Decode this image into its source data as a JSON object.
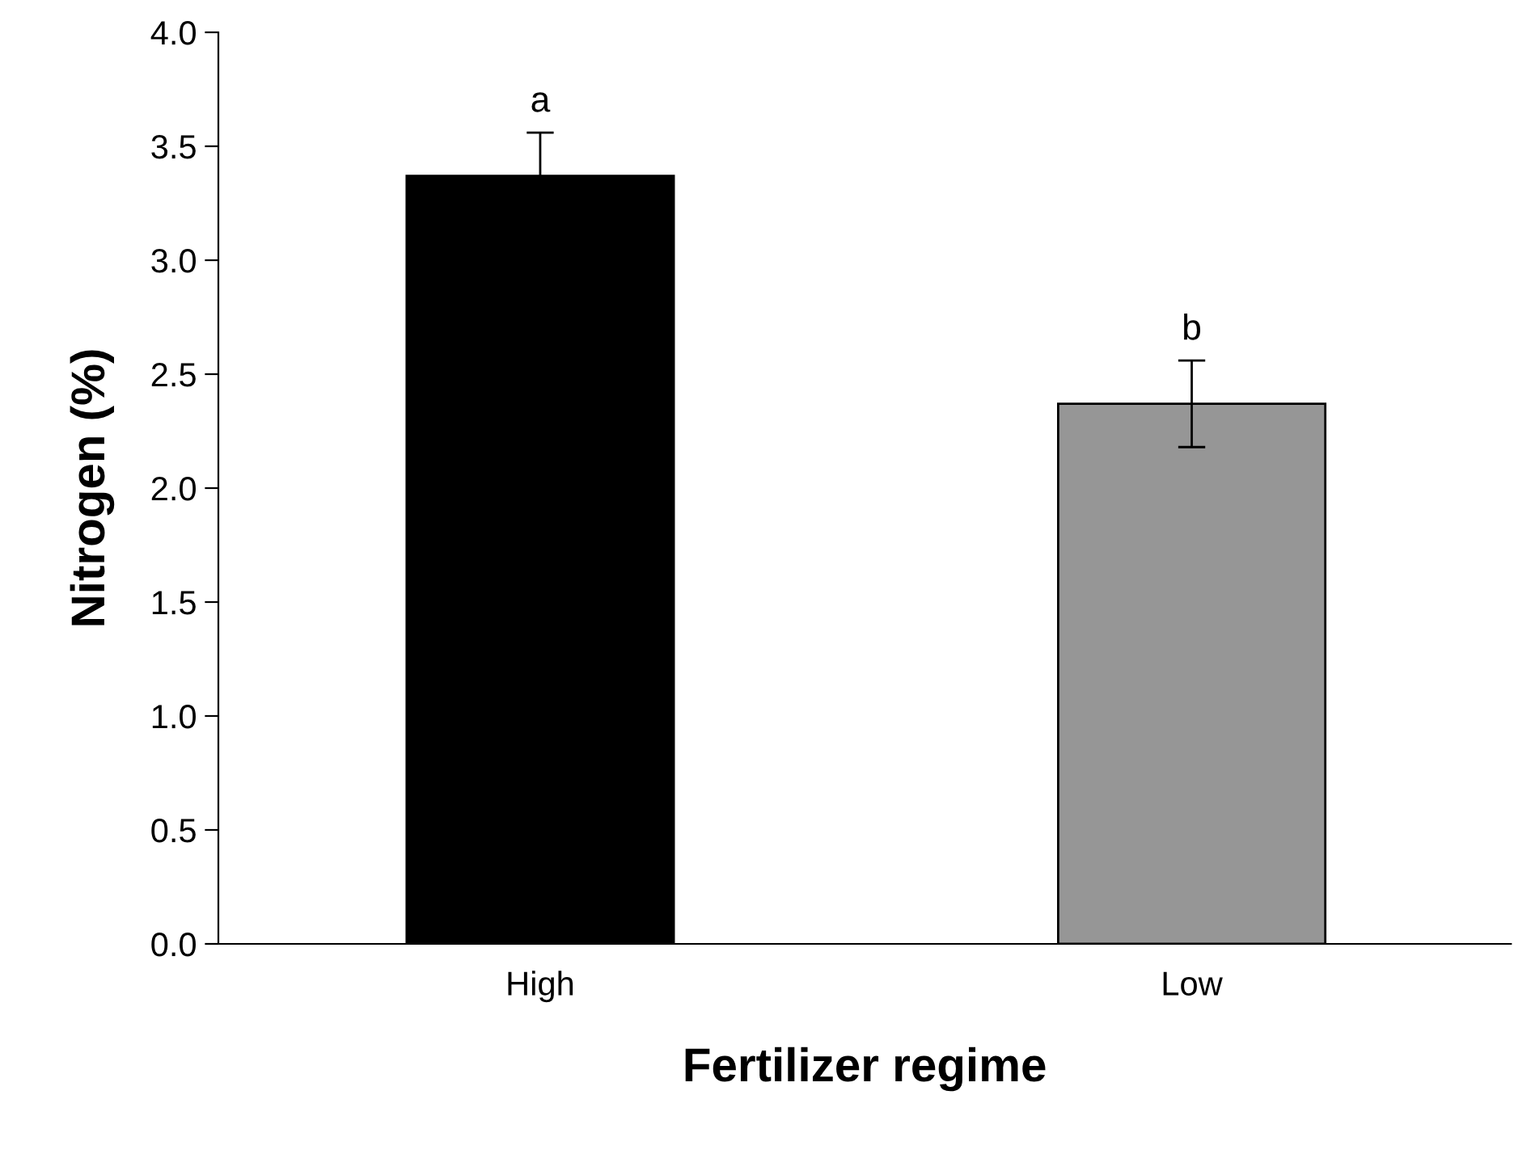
{
  "chart_data": {
    "type": "bar",
    "xlabel": "Fertilizer regime",
    "ylabel": "Nitrogen (%)",
    "categories": [
      "High",
      "Low"
    ],
    "values": [
      3.37,
      2.37
    ],
    "errors": [
      0.19,
      0.19
    ],
    "colors": [
      "#000000",
      "#969696"
    ],
    "ylim": [
      0,
      4.0
    ],
    "yticks": [
      {
        "value": 0,
        "label": "0.0"
      },
      {
        "value": 0.5,
        "label": "0.5"
      },
      {
        "value": 1.0,
        "label": "1.0"
      },
      {
        "value": 1.5,
        "label": "1.5"
      },
      {
        "value": 2.0,
        "label": "2.0"
      },
      {
        "value": 2.5,
        "label": "2.5"
      },
      {
        "value": 3.0,
        "label": "3.0"
      },
      {
        "value": 3.5,
        "label": "3.5"
      },
      {
        "value": 4.0,
        "label": "4.0"
      }
    ],
    "annotations": [
      "a",
      "b"
    ],
    "grid": false,
    "legend": false
  }
}
